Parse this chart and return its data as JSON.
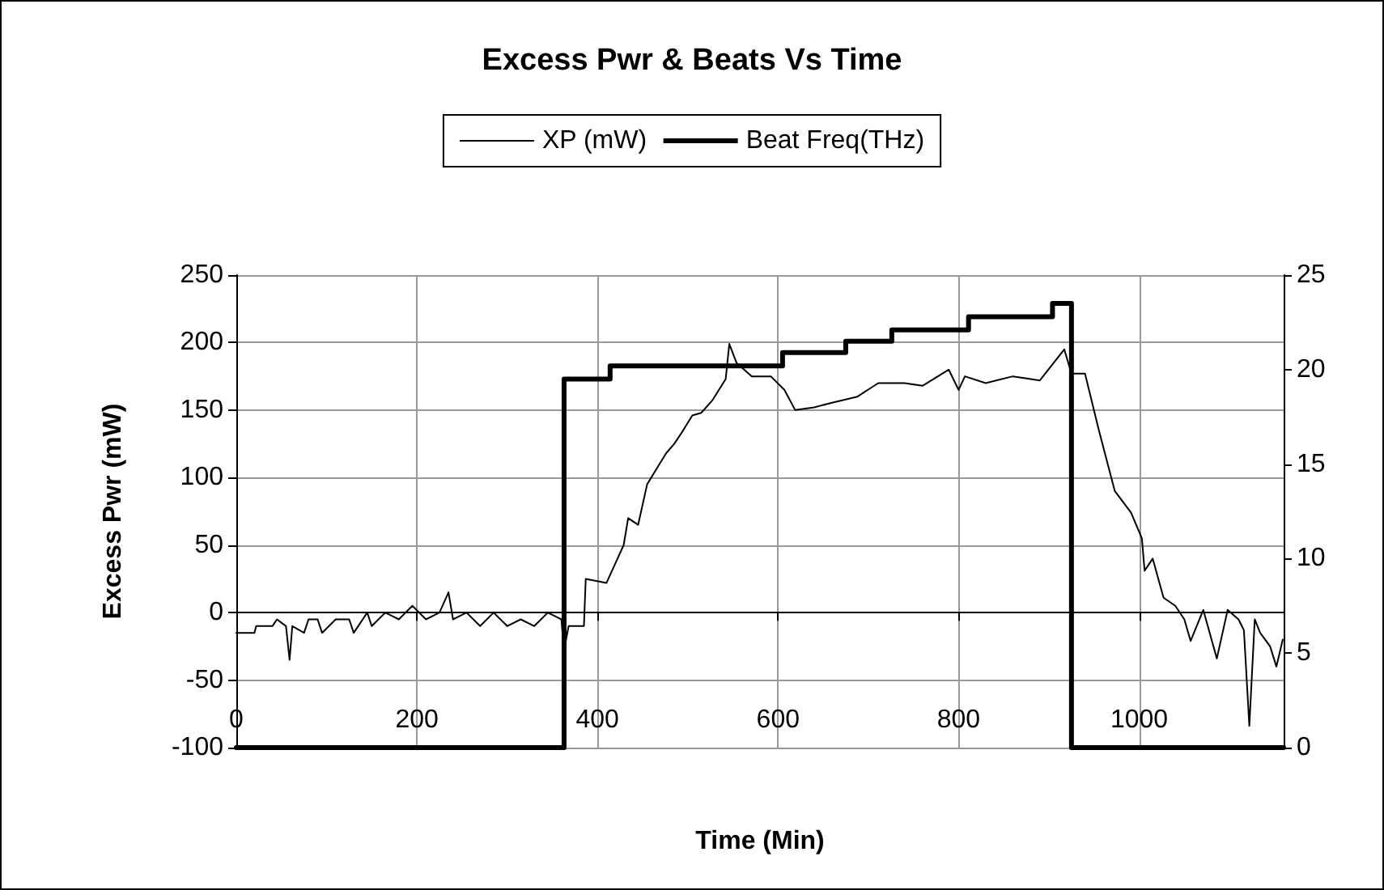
{
  "chart_data": {
    "type": "line",
    "title": "Excess Pwr & Beats Vs Time",
    "xlabel": "Time (Min)",
    "ylabel": "Excess Pwr (mW)",
    "xlim": [
      0,
      1160
    ],
    "xticks": [
      0,
      200,
      400,
      600,
      800,
      {
        "value": 1000,
        "label": "1000"
      }
    ],
    "ylim": [
      -100,
      250
    ],
    "yticks": [
      -100,
      -50,
      0,
      50,
      100,
      150,
      200,
      250
    ],
    "y2lim": [
      0,
      25
    ],
    "y2ticks": [
      0,
      5,
      10,
      15,
      20,
      25
    ],
    "grid": true,
    "legend": "top",
    "marker": "none",
    "series": [
      {
        "name": "XP (mW)",
        "color": "#000000",
        "x": [
          0,
          20,
          22,
          40,
          45,
          55,
          59,
          62,
          75,
          80,
          90,
          95,
          110,
          125,
          130,
          145,
          150,
          165,
          180,
          195,
          210,
          225,
          235,
          240,
          255,
          270,
          285,
          300,
          315,
          330,
          345,
          360,
          363,
          368,
          385,
          387,
          410,
          429,
          434,
          445,
          455,
          465,
          476,
          485,
          494,
          505,
          515,
          527,
          542,
          546,
          554,
          571,
          592,
          607,
          619,
          640,
          657,
          688,
          711,
          740,
          760,
          789,
          800,
          807,
          830,
          860,
          890,
          917,
          925,
          940,
          955,
          973,
          991,
          1003,
          1006,
          1015,
          1027,
          1040,
          1050,
          1057,
          1071,
          1086,
          1098,
          1110,
          1116,
          1122,
          1128,
          1134,
          1145,
          1152,
          1159
        ],
        "values": [
          -15,
          -15,
          -10,
          -10,
          -5,
          -10,
          -35,
          -10,
          -15,
          -5,
          -5,
          -15,
          -5,
          -5,
          -15,
          0,
          -10,
          0,
          -5,
          5,
          -5,
          0,
          15,
          -5,
          0,
          -10,
          0,
          -10,
          -5,
          -10,
          0,
          -5,
          -28,
          -10,
          -10,
          25,
          22,
          50,
          70,
          65,
          95,
          106,
          118,
          125,
          134,
          146,
          148,
          157,
          173,
          199,
          185,
          175,
          175,
          165,
          150,
          152,
          155,
          160,
          170,
          170,
          168,
          180,
          165,
          175,
          170,
          175,
          172,
          195,
          177,
          177,
          136,
          90,
          74,
          55,
          31,
          40,
          11,
          5,
          -5,
          -21,
          2,
          -34,
          2,
          -5,
          -13,
          -84,
          -5,
          -15,
          -25,
          -40,
          -20
        ]
      },
      {
        "name": "Beat Freq(THz)",
        "color": "#000000",
        "type": "step",
        "axis": "y2",
        "x": [
          0,
          363,
          414,
          605,
          675,
          726,
          811,
          904,
          925,
          1160
        ],
        "values": [
          0,
          19.5,
          20.2,
          20.9,
          21.5,
          22.1,
          22.8,
          23.5,
          0,
          0
        ]
      }
    ]
  }
}
